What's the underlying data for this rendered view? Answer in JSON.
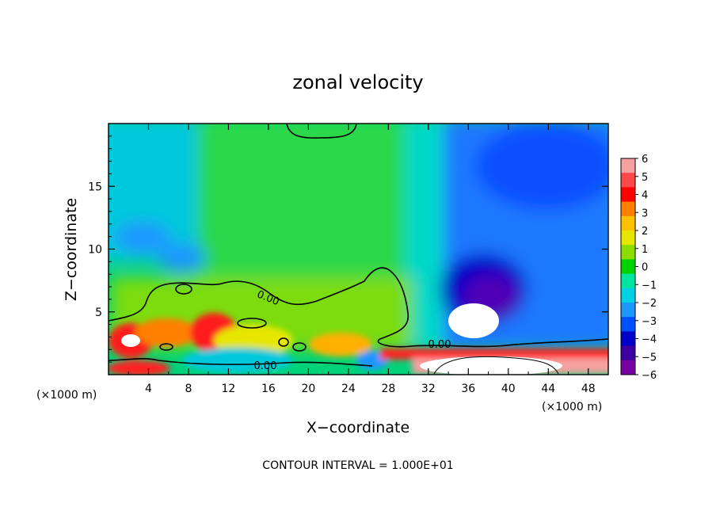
{
  "chart_data": {
    "type": "heatmap",
    "title": "zonal velocity",
    "xlabel": "X−coordinate",
    "ylabel": "Z−coordinate",
    "x_unit_left": "(×1000 m)",
    "x_unit_right": "(×1000 m)",
    "xlim": [
      0,
      50
    ],
    "ylim": [
      0,
      20
    ],
    "xticks": [
      4,
      8,
      12,
      16,
      20,
      24,
      28,
      32,
      36,
      40,
      44,
      48
    ],
    "yticks": [
      5,
      10,
      15
    ],
    "xtick_labels": [
      "4",
      "8",
      "12",
      "16",
      "20",
      "24",
      "28",
      "32",
      "36",
      "40",
      "44",
      "48"
    ],
    "ytick_labels": [
      "5",
      "10",
      "15"
    ],
    "colorbar": {
      "levels": [
        6,
        5,
        4,
        3,
        2,
        1,
        0,
        -1,
        -2,
        -3,
        -4,
        -5,
        -6
      ],
      "labels": [
        "6",
        "5",
        "4",
        "3",
        "2",
        "1",
        "0",
        "−1",
        "−2",
        "−3",
        "−4",
        "−5",
        "−6"
      ],
      "colors": [
        "#f7a0a0",
        "#ff4848",
        "#ff0000",
        "#ff7f00",
        "#ffc000",
        "#e6e600",
        "#8cdc00",
        "#00d200",
        "#00e6a0",
        "#00d2e6",
        "#1e96ff",
        "#0050ff",
        "#0000c8",
        "#3c00a0",
        "#7800a0"
      ]
    },
    "contour_labels": [
      "0.00",
      "0.00",
      "0.00"
    ],
    "contour_interval": "CONTOUR INTERVAL = 1.000E+01"
  }
}
